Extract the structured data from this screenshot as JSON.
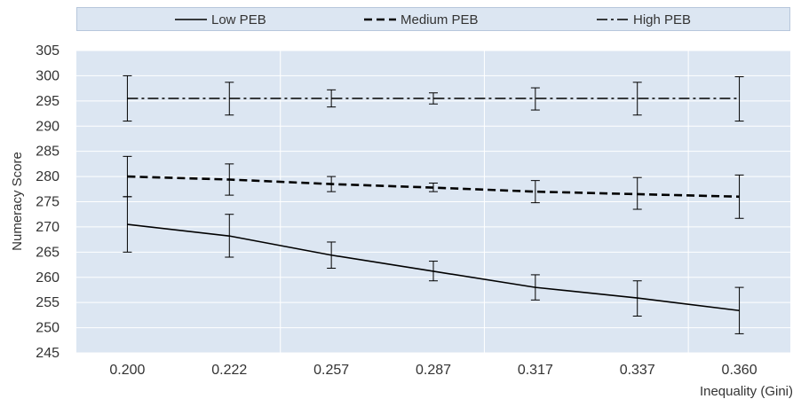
{
  "chart_data": {
    "type": "line",
    "categories": [
      "0.200",
      "0.222",
      "0.257",
      "0.287",
      "0.317",
      "0.337",
      "0.360"
    ],
    "xlabel": "Inequality (Gini)",
    "ylabel": "Numeracy Score",
    "ylim": [
      245,
      305
    ],
    "yticks": [
      245,
      250,
      255,
      260,
      265,
      270,
      275,
      280,
      285,
      290,
      295,
      300,
      305
    ],
    "grid": true,
    "legend_position": "top",
    "colors": {
      "plot_background": "#dce6f2",
      "grid": "#ffffff",
      "line": "#000000"
    },
    "series": [
      {
        "name": "Low PEB",
        "dash": "solid",
        "values": [
          270.5,
          268.2,
          264.4,
          261.2,
          258.0,
          255.9,
          253.4
        ],
        "err_low": [
          265.0,
          264.0,
          261.8,
          259.3,
          255.5,
          252.3,
          248.8
        ],
        "err_high": [
          276.0,
          272.5,
          267.0,
          263.2,
          260.5,
          259.3,
          258.0
        ]
      },
      {
        "name": "Medium PEB",
        "dash": "dashed",
        "values": [
          280.0,
          279.4,
          278.5,
          277.8,
          277.0,
          276.5,
          276.0
        ],
        "err_low": [
          276.0,
          276.3,
          277.0,
          277.0,
          274.8,
          273.5,
          271.7
        ],
        "err_high": [
          284.0,
          282.5,
          280.0,
          278.7,
          279.2,
          279.8,
          280.3
        ]
      },
      {
        "name": "High PEB",
        "dash": "dash-dot",
        "values": [
          295.5,
          295.5,
          295.5,
          295.5,
          295.5,
          295.5,
          295.5
        ],
        "err_low": [
          291.0,
          292.2,
          293.8,
          294.4,
          293.2,
          292.2,
          291.0
        ],
        "err_high": [
          300.0,
          298.7,
          297.2,
          296.6,
          297.6,
          298.7,
          299.8
        ]
      }
    ]
  }
}
